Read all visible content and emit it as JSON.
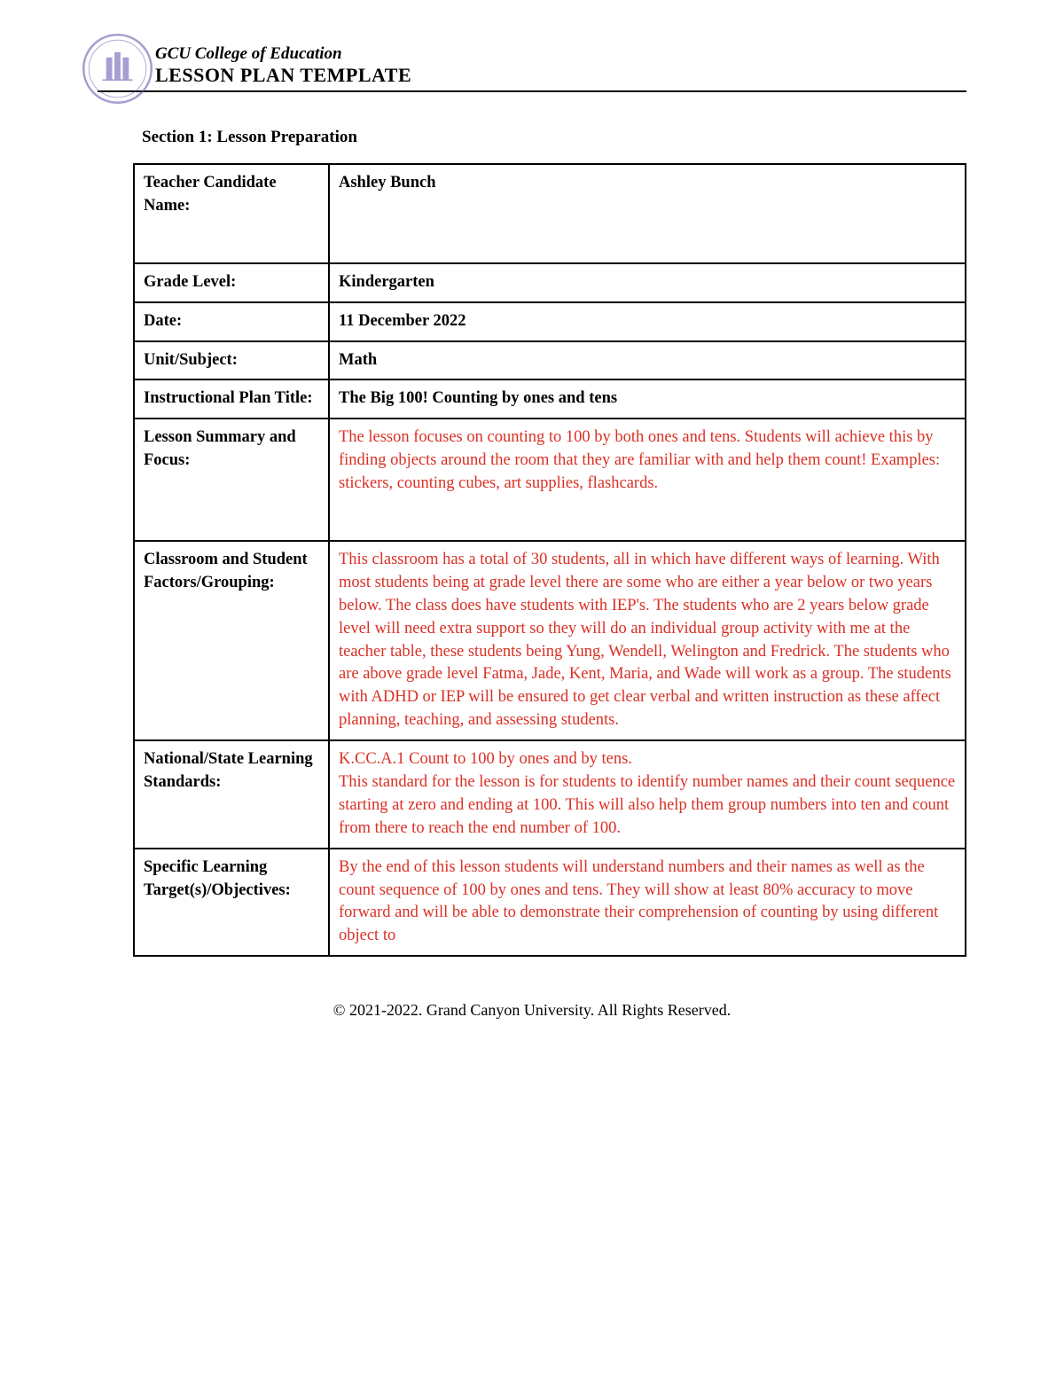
{
  "header": {
    "college": "GCU College of Education",
    "title": "LESSON PLAN TEMPLATE",
    "logo_color": "#6b5fb3",
    "border_color": "#000000"
  },
  "section": {
    "title": "Section 1: Lesson Preparation"
  },
  "rows": [
    {
      "label": "Teacher Candidate Name:",
      "value": "Ashley Bunch",
      "red": false,
      "tall": true
    },
    {
      "label": "Grade Level:",
      "value": "Kindergarten",
      "red": false,
      "tall": false
    },
    {
      "label": "Date:",
      "value": "11 December 2022",
      "red": false,
      "tall": false
    },
    {
      "label": "Unit/Subject:",
      "value": "Math",
      "red": false,
      "tall": false
    },
    {
      "label": "Instructional Plan Title:",
      "value": "The Big 100! Counting by ones and tens",
      "red": false,
      "tall": false
    },
    {
      "label": "Lesson Summary and Focus:",
      "value": "The lesson focuses on counting to 100 by both ones and tens. Students will achieve this by finding objects around the room that they are familiar with and help them count! Examples: stickers, counting cubes, art supplies, flashcards.",
      "red": true,
      "tall": true
    },
    {
      "label": "Classroom and Student Factors/Grouping:",
      "value": "This classroom has a total of 30 students, all in which have different ways of learning. With most students being at grade level there are some who are either a year below or two years below. The class does have students with IEP's. The students who are 2 years below grade level will need extra support so they will do an individual group activity with me at the teacher table, these students being Yung, Wendell, Welington and Fredrick. The students who are above grade level Fatma, Jade, Kent, Maria, and Wade will work as a group. The students with ADHD or IEP will be ensured to get clear verbal and written instruction as these affect planning, teaching, and assessing students.",
      "red": true,
      "tall": false
    },
    {
      "label": "National/State Learning Standards:",
      "value": "K.CC.A.1 Count to 100 by ones and by tens.\nThis standard for the lesson is for students to identify number names and their count sequence starting at zero and ending at 100. This will also help them group numbers into ten and count from there to reach the end number of 100.",
      "red": true,
      "tall": false
    },
    {
      "label": "Specific Learning Target(s)/Objectives:",
      "value": "By the end of this lesson students will understand numbers and their names as well as the count sequence of 100 by ones and tens. They will show at least 80% accuracy to move forward and will be able to demonstrate their comprehension of counting by using different object to",
      "red": true,
      "tall": false
    }
  ],
  "footer": {
    "text": "© 2021-2022. Grand Canyon University. All Rights Reserved."
  },
  "colors": {
    "red_text": "#d93025",
    "black": "#000000",
    "background": "#ffffff"
  },
  "typography": {
    "body_font": "Georgia, serif",
    "base_size": 18.5
  }
}
